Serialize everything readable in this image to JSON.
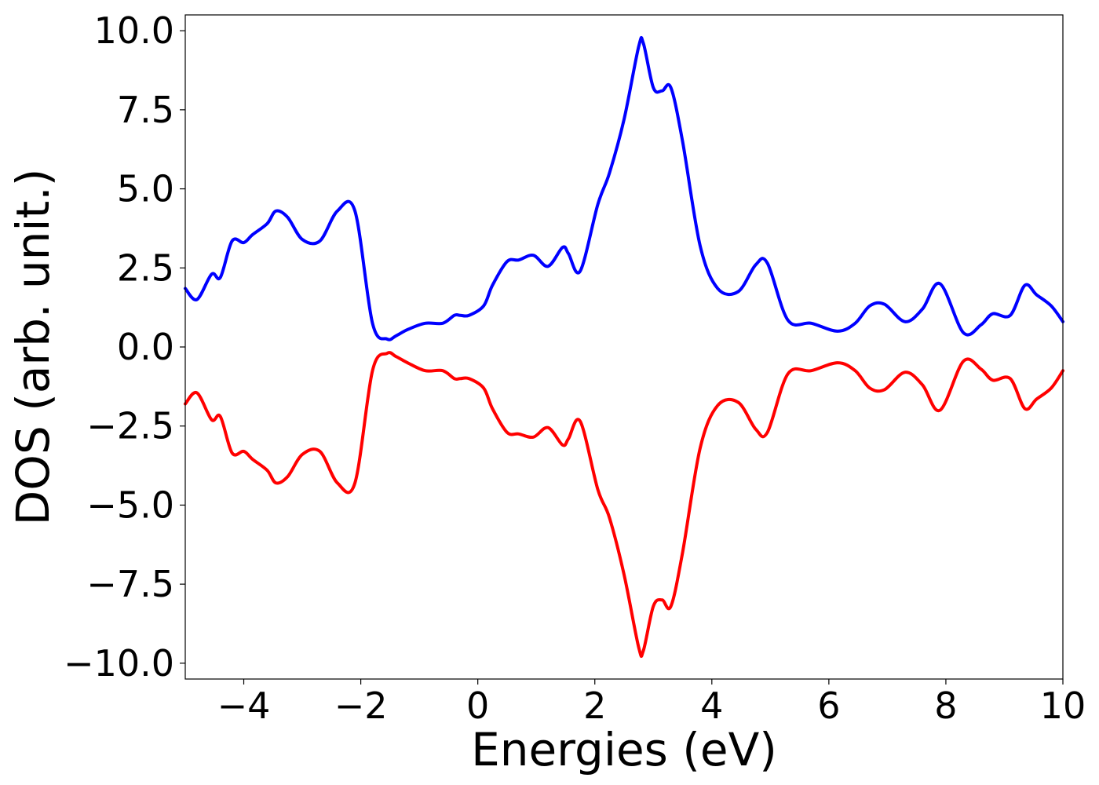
{
  "chart_data": {
    "type": "line",
    "xlabel": "Energies (eV)",
    "ylabel": "DOS (arb. unit.)",
    "xlim": [
      -5,
      10
    ],
    "ylim": [
      -10.5,
      10.5
    ],
    "xticks": [
      -4,
      -2,
      0,
      2,
      4,
      6,
      8,
      10
    ],
    "xtick_labels": [
      "−4",
      "−2",
      "0",
      "2",
      "4",
      "6",
      "8",
      "10"
    ],
    "yticks": [
      10,
      7.5,
      5,
      2.5,
      0,
      -2.5,
      -5,
      -7.5,
      -10
    ],
    "ytick_labels": [
      "10.0",
      "7.5",
      "5.0",
      "2.5",
      "0.0",
      "−2.5",
      "−5.0",
      "−7.5",
      "−10.0"
    ],
    "grid": false,
    "series": [
      {
        "color": "#0000ff",
        "x": [
          -5.0,
          -4.8,
          -4.55,
          -4.4,
          -4.2,
          -4.0,
          -3.85,
          -3.6,
          -3.45,
          -3.25,
          -3.0,
          -2.7,
          -2.4,
          -2.1,
          -1.8,
          -1.55,
          -1.4,
          -1.2,
          -0.9,
          -0.6,
          -0.4,
          -0.3,
          -0.15,
          0.1,
          0.25,
          0.5,
          0.7,
          0.95,
          1.2,
          1.45,
          1.55,
          1.75,
          2.05,
          2.25,
          2.5,
          2.75,
          2.83,
          3.0,
          3.15,
          3.3,
          3.5,
          3.8,
          4.1,
          4.45,
          4.75,
          4.95,
          5.3,
          5.7,
          6.15,
          6.45,
          6.7,
          6.95,
          7.3,
          7.6,
          7.9,
          8.3,
          8.6,
          8.8,
          9.1,
          9.35,
          9.55,
          9.8,
          10.0
        ],
        "values": [
          1.85,
          1.5,
          2.3,
          2.2,
          3.35,
          3.3,
          3.55,
          3.9,
          4.3,
          4.1,
          3.4,
          3.35,
          4.3,
          4.3,
          0.75,
          0.25,
          0.35,
          0.55,
          0.75,
          0.75,
          1.0,
          1.0,
          1.0,
          1.3,
          1.95,
          2.7,
          2.75,
          2.9,
          2.55,
          3.15,
          2.95,
          2.4,
          4.5,
          5.5,
          7.2,
          9.5,
          9.6,
          8.2,
          8.1,
          8.2,
          6.5,
          3.2,
          1.85,
          1.75,
          2.6,
          2.65,
          0.85,
          0.75,
          0.5,
          0.75,
          1.3,
          1.35,
          0.8,
          1.2,
          2.0,
          0.45,
          0.7,
          1.05,
          1.0,
          1.95,
          1.65,
          1.3,
          0.8
        ]
      },
      {
        "color": "#ff0000",
        "x": [
          -5.0,
          -4.8,
          -4.55,
          -4.4,
          -4.2,
          -4.0,
          -3.85,
          -3.6,
          -3.45,
          -3.25,
          -3.0,
          -2.7,
          -2.4,
          -2.1,
          -1.8,
          -1.55,
          -1.4,
          -1.2,
          -0.9,
          -0.6,
          -0.4,
          -0.3,
          -0.15,
          0.1,
          0.25,
          0.5,
          0.7,
          0.95,
          1.2,
          1.45,
          1.55,
          1.75,
          2.05,
          2.25,
          2.5,
          2.75,
          2.83,
          3.0,
          3.15,
          3.3,
          3.5,
          3.8,
          4.1,
          4.45,
          4.75,
          4.95,
          5.3,
          5.7,
          6.15,
          6.45,
          6.7,
          6.95,
          7.3,
          7.6,
          7.9,
          8.3,
          8.6,
          8.8,
          9.1,
          9.35,
          9.55,
          9.8,
          10.0
        ],
        "values": [
          -1.8,
          -1.45,
          -2.3,
          -2.2,
          -3.35,
          -3.3,
          -3.55,
          -3.9,
          -4.3,
          -4.1,
          -3.4,
          -3.3,
          -4.3,
          -4.3,
          -0.75,
          -0.2,
          -0.3,
          -0.5,
          -0.75,
          -0.75,
          -1.0,
          -1.0,
          -1.0,
          -1.3,
          -1.95,
          -2.7,
          -2.75,
          -2.85,
          -2.55,
          -3.1,
          -2.9,
          -2.35,
          -4.5,
          -5.4,
          -7.2,
          -9.5,
          -9.6,
          -8.2,
          -8.0,
          -8.2,
          -6.5,
          -3.2,
          -1.85,
          -1.75,
          -2.6,
          -2.7,
          -0.85,
          -0.75,
          -0.5,
          -0.75,
          -1.3,
          -1.35,
          -0.8,
          -1.2,
          -2.0,
          -0.45,
          -0.7,
          -1.05,
          -1.0,
          -1.95,
          -1.65,
          -1.3,
          -0.75
        ]
      }
    ]
  }
}
